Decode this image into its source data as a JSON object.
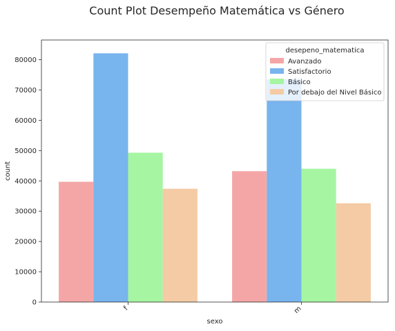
{
  "chart_data": {
    "type": "bar",
    "title": "Count Plot Desempeño Matemática vs Género",
    "xlabel": "sexo",
    "ylabel": "count",
    "categories": [
      "f",
      "m"
    ],
    "ylim": [
      0,
      86500
    ],
    "yticks": [
      0,
      10000,
      20000,
      30000,
      40000,
      50000,
      60000,
      70000,
      80000
    ],
    "legend_title": "desepeno_matematica",
    "legend_position": "top-right",
    "grid": false,
    "series": [
      {
        "name": "Avanzado",
        "values": [
          39700,
          43200
        ],
        "color": "#f4a6a6"
      },
      {
        "name": "Satisfactorio",
        "values": [
          82100,
          73500
        ],
        "color": "#78b4ee"
      },
      {
        "name": "Básico",
        "values": [
          49300,
          44000
        ],
        "color": "#a6f5a2"
      },
      {
        "name": "Por debajo del Nivel Básico",
        "values": [
          37400,
          32600
        ],
        "color": "#f4cba4"
      }
    ]
  }
}
